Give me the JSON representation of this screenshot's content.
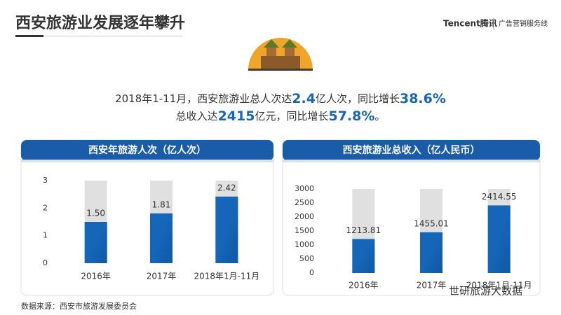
{
  "header": {
    "title": "西安旅游业发展逐年攀升",
    "brand": "Tencent腾讯",
    "tagline": "广告营销服务线"
  },
  "summary": {
    "line1": [
      "2018年1-11月，西安旅游业总人次达",
      "2.4",
      "亿人次，同比增长",
      "38.6%"
    ],
    "line2": [
      "总收入达",
      "2415",
      "亿元，同比增长",
      "57.8%",
      "。"
    ]
  },
  "source": "数据来源：西安市旅游发展委员会",
  "watermark": "世研旅游大数据",
  "chart_data": [
    {
      "type": "bar",
      "title": "西安年旅游人次（亿人次）",
      "categories": [
        "2016年",
        "2017年",
        "2018年1月-11月"
      ],
      "values": [
        1.5,
        1.81,
        2.42
      ],
      "value_labels": [
        "1.50",
        "1.81",
        "2.42"
      ],
      "color": "#1565b8",
      "track_color": "#e0e0e0",
      "ylim": [
        0,
        3
      ],
      "yticks": [
        0,
        1,
        2,
        3
      ]
    },
    {
      "type": "bar",
      "title": "西安旅游业总收入（亿人民币）",
      "categories": [
        "2016年",
        "2017年",
        "2018年1月-11月"
      ],
      "values": [
        1213.81,
        1455.01,
        2414.55
      ],
      "value_labels": [
        "1213.81",
        "1455.01",
        "2414.55"
      ],
      "color": "#1565b8",
      "track_color": "#e0e0e0",
      "ylim": [
        0,
        3000
      ],
      "yticks": [
        0,
        500,
        1000,
        1500,
        2000,
        2500,
        3000
      ]
    }
  ]
}
